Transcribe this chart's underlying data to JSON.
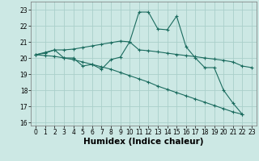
{
  "xlabel": "Humidex (Indice chaleur)",
  "background_color": "#cce8e4",
  "grid_color": "#aacfca",
  "line_color": "#1a6b5e",
  "x": [
    0,
    1,
    2,
    3,
    4,
    5,
    6,
    7,
    8,
    9,
    10,
    11,
    12,
    13,
    14,
    15,
    16,
    17,
    18,
    19,
    20,
    21,
    22,
    23
  ],
  "line1": [
    20.2,
    20.35,
    20.5,
    20.5,
    20.55,
    20.65,
    20.75,
    20.85,
    20.95,
    21.05,
    21.0,
    20.5,
    20.45,
    20.38,
    20.3,
    20.22,
    20.15,
    20.08,
    20.0,
    19.93,
    19.85,
    19.75,
    19.5,
    19.4
  ],
  "line2": [
    20.2,
    20.3,
    20.5,
    20.0,
    20.0,
    19.5,
    19.6,
    19.3,
    19.9,
    20.05,
    21.0,
    22.85,
    22.85,
    21.8,
    21.75,
    22.6,
    20.7,
    20.0,
    19.4,
    19.4,
    18.0,
    17.2,
    16.5,
    null
  ],
  "line3": [
    20.2,
    20.15,
    20.1,
    20.0,
    19.9,
    19.75,
    19.6,
    19.45,
    19.3,
    19.1,
    18.9,
    18.7,
    18.5,
    18.25,
    18.05,
    17.85,
    17.65,
    17.45,
    17.25,
    17.05,
    16.85,
    16.65,
    16.5,
    null
  ],
  "ylim": [
    15.8,
    23.5
  ],
  "xlim": [
    -0.5,
    23.5
  ],
  "yticks": [
    16,
    17,
    18,
    19,
    20,
    21,
    22,
    23
  ],
  "xticks": [
    0,
    1,
    2,
    3,
    4,
    5,
    6,
    7,
    8,
    9,
    10,
    11,
    12,
    13,
    14,
    15,
    16,
    17,
    18,
    19,
    20,
    21,
    22,
    23
  ],
  "tick_fontsize": 5.5,
  "xlabel_fontsize": 7.5,
  "marker_size": 2.5,
  "linewidth": 0.8
}
